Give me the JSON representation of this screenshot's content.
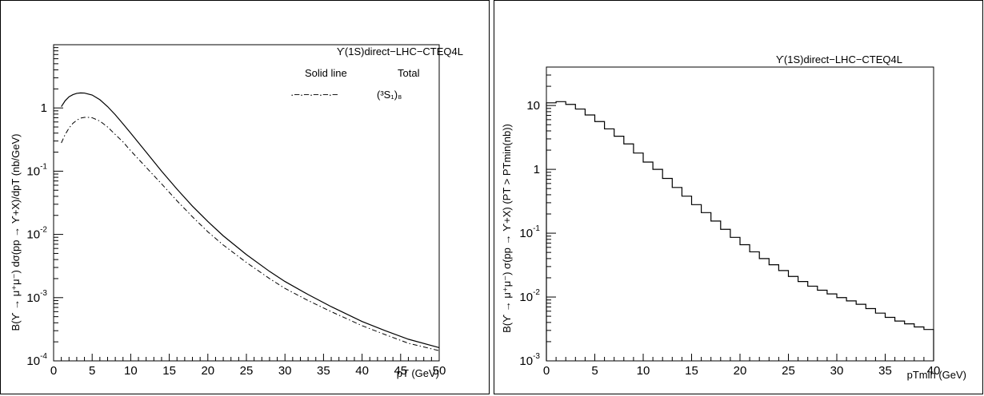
{
  "chart_data": [
    {
      "type": "line",
      "title": "ϒ(1S)direct−LHC−CTEQ4L",
      "xlabel": "pT (GeV)",
      "ylabel": "B(ϒ → μ⁺μ⁻) dσ(pp → ϒ+X)/dpT (nb/GeV)",
      "xlim": [
        0,
        50
      ],
      "ylim": [
        0.0001,
        10
      ],
      "yscale": "log",
      "x_ticks": [
        "0",
        "5",
        "10",
        "15",
        "20",
        "25",
        "30",
        "35",
        "40",
        "45",
        "50"
      ],
      "y_ticks": [
        {
          "mantissa": "10",
          "exp": "-4"
        },
        {
          "mantissa": "10",
          "exp": "-3"
        },
        {
          "mantissa": "10",
          "exp": "-2"
        },
        {
          "mantissa": "10",
          "exp": "-1"
        },
        {
          "mantissa": "1",
          "exp": ""
        }
      ],
      "legend": {
        "position": "top-right",
        "entries": [
          {
            "symbol_text": "Solid line",
            "label": "Total",
            "style": "solid"
          },
          {
            "symbol_text": "·−·−·−·−·−",
            "label": "(³S₁)₈",
            "style": "dashdot"
          }
        ]
      },
      "series": [
        {
          "name": "Total",
          "style": "solid",
          "x": [
            1,
            1.5,
            2,
            2.5,
            3,
            3.5,
            4,
            5,
            6,
            7,
            8,
            9,
            10,
            12,
            14,
            16,
            18,
            20,
            22,
            25,
            28,
            30,
            33,
            36,
            40,
            43,
            46,
            50
          ],
          "y": [
            1.05,
            1.3,
            1.5,
            1.62,
            1.7,
            1.73,
            1.72,
            1.6,
            1.35,
            1.05,
            0.78,
            0.56,
            0.4,
            0.2,
            0.1,
            0.052,
            0.028,
            0.016,
            0.0095,
            0.0048,
            0.0026,
            0.0018,
            0.00112,
            0.00072,
            0.00042,
            0.0003,
            0.00022,
            0.000162
          ]
        },
        {
          "name": "(³S₁)₈",
          "style": "dashdot",
          "x": [
            1,
            1.5,
            2,
            2.5,
            3,
            3.5,
            4,
            4.5,
            5,
            6,
            7,
            8,
            9,
            10,
            12,
            14,
            16,
            18,
            20,
            22,
            25,
            28,
            30,
            33,
            36,
            40,
            43,
            46,
            50
          ],
          "y": [
            0.28,
            0.38,
            0.48,
            0.57,
            0.64,
            0.69,
            0.71,
            0.71,
            0.7,
            0.62,
            0.5,
            0.38,
            0.29,
            0.21,
            0.115,
            0.063,
            0.034,
            0.019,
            0.011,
            0.0068,
            0.0036,
            0.002,
            0.0014,
            0.0009,
            0.0006,
            0.00036,
            0.00026,
            0.00019,
            0.000145
          ]
        }
      ]
    },
    {
      "type": "line",
      "step": true,
      "title": "ϒ(1S)direct−LHC−CTEQ4L",
      "xlabel": "pTmin (GeV)",
      "ylabel": "B(ϒ → μ⁺μ⁻) σ(pp → ϒ+X) (PT > PTmin(nb))",
      "xlim": [
        0,
        40
      ],
      "ylim": [
        0.001,
        40
      ],
      "yscale": "log",
      "x_ticks": [
        "0",
        "5",
        "10",
        "15",
        "20",
        "25",
        "30",
        "35",
        "40"
      ],
      "y_ticks": [
        {
          "mantissa": "10",
          "exp": "-3"
        },
        {
          "mantissa": "10",
          "exp": "-2"
        },
        {
          "mantissa": "10",
          "exp": "-1"
        },
        {
          "mantissa": "1",
          "exp": ""
        },
        {
          "mantissa": "10",
          "exp": ""
        }
      ],
      "series": [
        {
          "name": "",
          "bin_edges": [
            0,
            1,
            2,
            3,
            4,
            5,
            6,
            7,
            8,
            9,
            10,
            11,
            12,
            13,
            14,
            15,
            16,
            17,
            18,
            19,
            20,
            21,
            22,
            23,
            24,
            25,
            26,
            27,
            28,
            29,
            30,
            31,
            32,
            33,
            34,
            35,
            36,
            37,
            38,
            39,
            40
          ],
          "values": [
            11,
            11.5,
            10.4,
            8.8,
            7.1,
            5.6,
            4.3,
            3.3,
            2.5,
            1.8,
            1.3,
            1.0,
            0.72,
            0.52,
            0.38,
            0.28,
            0.21,
            0.155,
            0.115,
            0.086,
            0.066,
            0.051,
            0.04,
            0.032,
            0.026,
            0.021,
            0.0175,
            0.0148,
            0.0128,
            0.0112,
            0.0098,
            0.0087,
            0.0077,
            0.0066,
            0.0056,
            0.0048,
            0.0042,
            0.0038,
            0.0034,
            0.0031
          ]
        }
      ]
    }
  ]
}
